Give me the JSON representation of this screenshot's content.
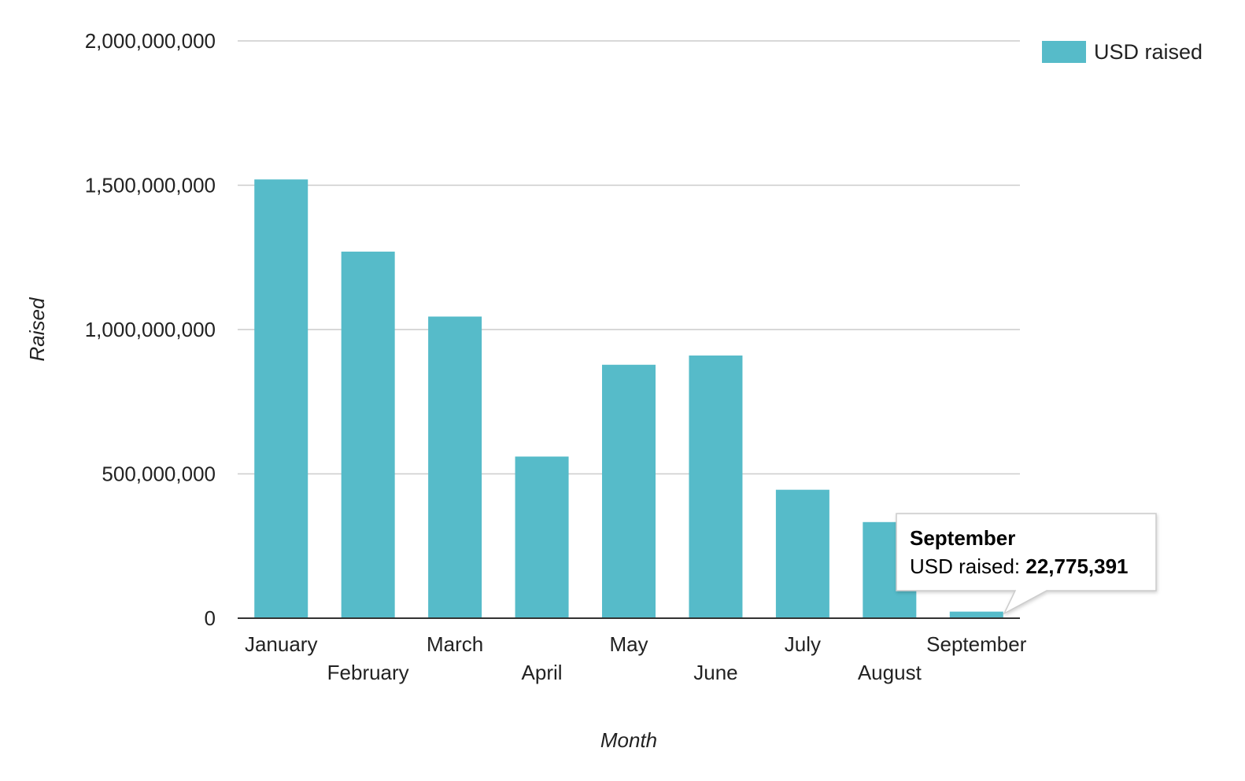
{
  "chart_data": {
    "type": "bar",
    "categories": [
      "January",
      "February",
      "March",
      "April",
      "May",
      "June",
      "July",
      "August",
      "September"
    ],
    "series": [
      {
        "name": "USD raised",
        "color": "#56bbc9",
        "values": [
          1520000000,
          1270000000,
          1045000000,
          560000000,
          878000000,
          910000000,
          445000000,
          333000000,
          22775391
        ]
      }
    ],
    "xlabel": "Month",
    "ylabel": "Raised",
    "ylim": [
      0,
      2000000000
    ],
    "yticks": [
      0,
      500000000,
      1000000000,
      1500000000,
      2000000000
    ],
    "ytick_labels": [
      "0",
      "500,000,000",
      "1,000,000,000",
      "1,500,000,000",
      "2,000,000,000"
    ],
    "grid": true,
    "legend_position": "top-right",
    "tooltip": {
      "category": "September",
      "label": "USD raised: ",
      "value": "22,775,391"
    }
  }
}
